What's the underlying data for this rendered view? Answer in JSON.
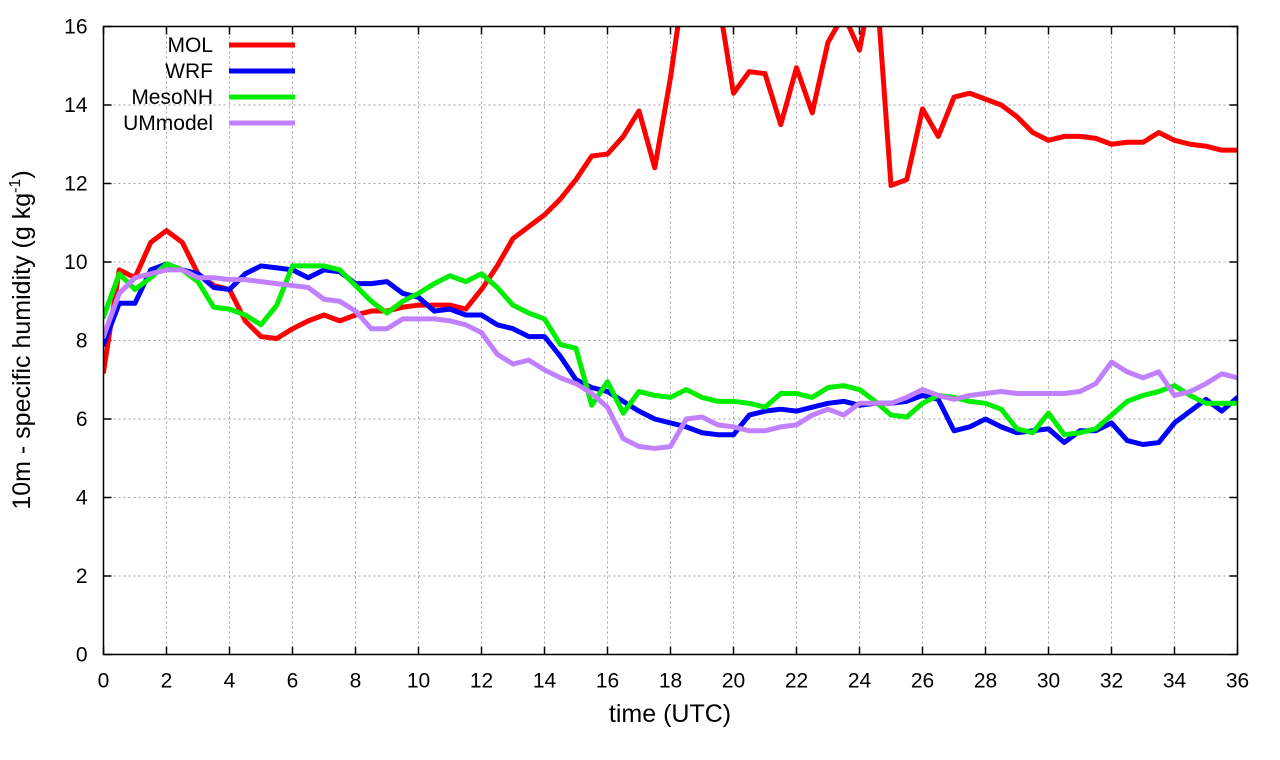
{
  "chart_data": {
    "type": "line",
    "title": "",
    "xlabel": "time (UTC)",
    "ylabel_main": "10m - specific humidity (g kg",
    "ylabel_sup": "-1",
    "ylabel_end": ")",
    "xlim": [
      0,
      36
    ],
    "ylim": [
      0,
      16
    ],
    "xticks": [
      0,
      2,
      4,
      6,
      8,
      10,
      12,
      14,
      16,
      18,
      20,
      22,
      24,
      26,
      28,
      30,
      32,
      34,
      36
    ],
    "yticks": [
      0,
      2,
      4,
      6,
      8,
      10,
      12,
      14,
      16
    ],
    "grid": true,
    "legend_position": "top-left",
    "x": [
      0,
      0.5,
      1,
      1.5,
      2,
      2.5,
      3,
      3.5,
      4,
      4.5,
      5,
      5.5,
      6,
      6.5,
      7,
      7.5,
      8,
      8.5,
      9,
      9.5,
      10,
      10.5,
      11,
      11.5,
      12,
      12.5,
      13,
      13.5,
      14,
      14.5,
      15,
      15.5,
      16,
      16.5,
      17,
      17.5,
      18,
      18.5,
      19,
      19.5,
      20,
      20.5,
      21,
      21.5,
      22,
      22.5,
      23,
      23.5,
      24,
      24.5,
      25,
      25.5,
      26,
      26.5,
      27,
      27.5,
      28,
      28.5,
      29,
      29.5,
      30,
      30.5,
      31,
      31.5,
      32,
      32.5,
      33,
      33.5,
      34,
      34.5,
      35,
      35.5,
      36
    ],
    "series": [
      {
        "name": "MOL",
        "color": "#ff0000",
        "values": [
          7.2,
          9.8,
          9.6,
          10.5,
          10.8,
          10.5,
          9.7,
          9.4,
          9.3,
          8.5,
          8.1,
          8.05,
          8.3,
          8.5,
          8.65,
          8.5,
          8.65,
          8.75,
          8.75,
          8.85,
          8.9,
          8.9,
          8.9,
          8.8,
          9.3,
          9.9,
          10.6,
          10.9,
          11.2,
          11.6,
          12.1,
          12.7,
          12.75,
          13.2,
          13.85,
          12.4,
          14.7,
          17.5,
          17.0,
          16.8,
          14.3,
          14.85,
          14.8,
          13.5,
          14.95,
          13.8,
          15.6,
          16.3,
          15.4,
          17.5,
          11.95,
          12.1,
          13.9,
          13.2,
          14.2,
          14.3,
          14.15,
          14.0,
          13.7,
          13.3,
          13.1,
          13.2,
          13.2,
          13.15,
          13.0,
          13.05,
          13.05,
          13.3,
          13.1,
          13.0,
          12.95,
          12.85,
          12.85
        ]
      },
      {
        "name": "WRF",
        "color": "#0000ff",
        "values": [
          7.9,
          8.95,
          8.95,
          9.8,
          9.95,
          9.8,
          9.7,
          9.35,
          9.3,
          9.7,
          9.9,
          9.85,
          9.8,
          9.6,
          9.8,
          9.75,
          9.45,
          9.45,
          9.5,
          9.2,
          9.1,
          8.75,
          8.8,
          8.65,
          8.65,
          8.4,
          8.3,
          8.1,
          8.1,
          7.6,
          7.0,
          6.8,
          6.7,
          6.45,
          6.2,
          6.0,
          5.9,
          5.8,
          5.65,
          5.6,
          5.6,
          6.1,
          6.2,
          6.25,
          6.2,
          6.3,
          6.4,
          6.45,
          6.35,
          6.4,
          6.4,
          6.45,
          6.6,
          6.5,
          5.7,
          5.8,
          6.0,
          5.8,
          5.65,
          5.7,
          5.75,
          5.4,
          5.7,
          5.7,
          5.9,
          5.45,
          5.35,
          5.4,
          5.9,
          6.2,
          6.5,
          6.2,
          6.55
        ]
      },
      {
        "name": "MesoNH",
        "color": "#00ee00",
        "values": [
          8.6,
          9.7,
          9.3,
          9.6,
          9.95,
          9.8,
          9.5,
          8.85,
          8.8,
          8.65,
          8.4,
          8.9,
          9.9,
          9.9,
          9.9,
          9.8,
          9.4,
          9.0,
          8.7,
          9.0,
          9.2,
          9.45,
          9.65,
          9.5,
          9.7,
          9.35,
          8.9,
          8.7,
          8.55,
          7.9,
          7.8,
          6.35,
          6.95,
          6.15,
          6.7,
          6.6,
          6.55,
          6.75,
          6.55,
          6.45,
          6.45,
          6.4,
          6.3,
          6.65,
          6.65,
          6.55,
          6.8,
          6.85,
          6.75,
          6.45,
          6.1,
          6.05,
          6.4,
          6.6,
          6.55,
          6.45,
          6.4,
          6.25,
          5.75,
          5.65,
          6.15,
          5.6,
          5.65,
          5.75,
          6.1,
          6.45,
          6.6,
          6.7,
          6.85,
          6.6,
          6.4,
          6.4,
          6.4
        ]
      },
      {
        "name": "UMmodel",
        "color": "#c080ff",
        "values": [
          8.1,
          9.2,
          9.6,
          9.7,
          9.8,
          9.8,
          9.6,
          9.6,
          9.55,
          9.55,
          9.5,
          9.45,
          9.4,
          9.35,
          9.05,
          9.0,
          8.75,
          8.3,
          8.3,
          8.55,
          8.55,
          8.55,
          8.5,
          8.4,
          8.2,
          7.65,
          7.4,
          7.5,
          7.25,
          7.05,
          6.9,
          6.65,
          6.3,
          5.5,
          5.3,
          5.25,
          5.3,
          6.0,
          6.05,
          5.85,
          5.8,
          5.7,
          5.7,
          5.8,
          5.85,
          6.1,
          6.25,
          6.1,
          6.4,
          6.4,
          6.4,
          6.55,
          6.75,
          6.6,
          6.5,
          6.6,
          6.65,
          6.7,
          6.65,
          6.65,
          6.65,
          6.65,
          6.7,
          6.9,
          7.45,
          7.2,
          7.05,
          7.2,
          6.6,
          6.7,
          6.9,
          7.15,
          7.05
        ]
      }
    ]
  }
}
